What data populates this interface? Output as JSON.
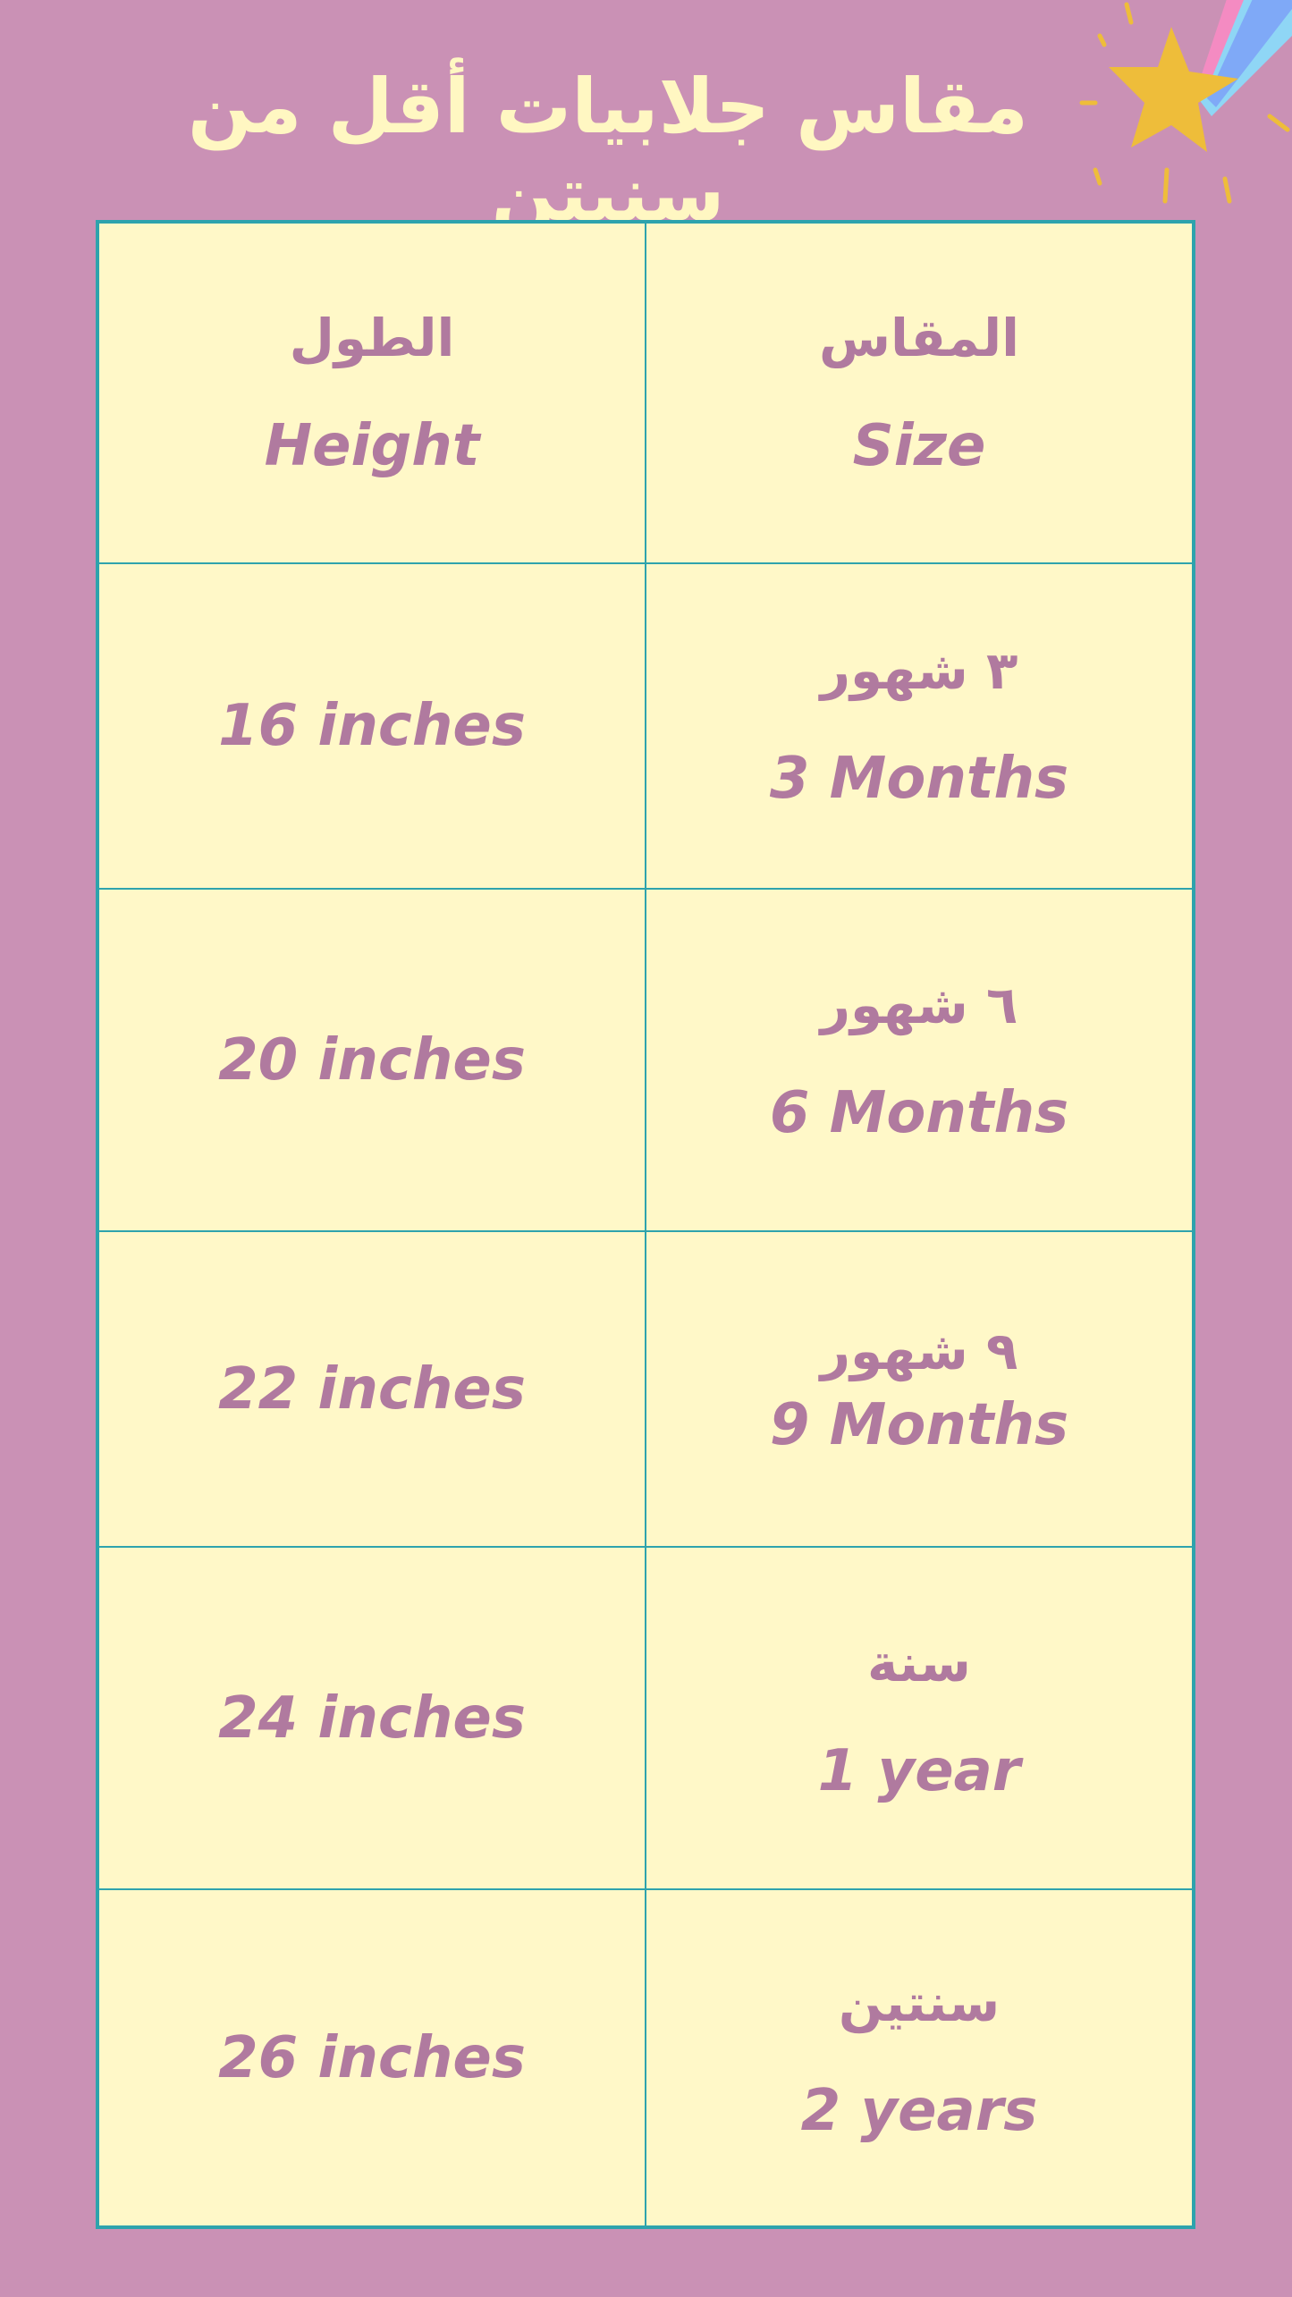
{
  "title": "مقاس جلابيات أقل من سنيتن",
  "colors": {
    "background": "#ca91b5",
    "cell": "#fff8c8",
    "border": "#2ea3ad",
    "text": "#b07a9f",
    "title": "#fff7c2",
    "star": "#eebd3a"
  },
  "header": {
    "height": {
      "ar": "الطول",
      "en": "Height"
    },
    "size": {
      "ar": "المقاس",
      "en": "Size"
    }
  },
  "rows": [
    {
      "height": "16 inches",
      "size_ar": "٣ شهور",
      "size_en": "3 Months"
    },
    {
      "height": "20 inches",
      "size_ar": "٦ شهور",
      "size_en": "6 Months"
    },
    {
      "height": "22 inches",
      "size_ar": "٩ شهور",
      "size_en": "9 Months"
    },
    {
      "height": "24 inches",
      "size_ar": "سنة",
      "size_en": "1 year"
    },
    {
      "height": "26 inches",
      "size_ar": "سنتين",
      "size_en": "2 years"
    }
  ]
}
